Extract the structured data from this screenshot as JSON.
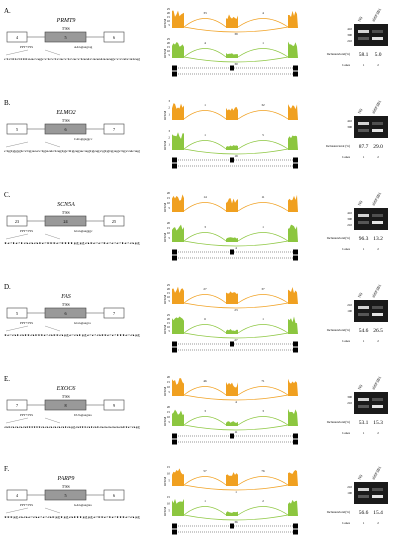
{
  "ss_label": "5'SS",
  "ppt_label": "PPT+3'SS",
  "rpkm_label": "RPKM",
  "inclusion_label": "Inclusion/total(%)",
  "inclusion_label_b": "Inclusion/total (%)",
  "lanes_label": "Lanes",
  "lane_numbers": [
    "1",
    "2"
  ],
  "lane_headers": [
    "NS",
    "shSF3B1"
  ],
  "colors": {
    "ns_track": "#f0a020",
    "sh_track": "#8cc63f",
    "exon_fill": "#999999",
    "gel_bg": "#1a1a1a"
  },
  "panels": [
    {
      "letter": "A.",
      "gene": "PRMT9",
      "exons": [
        "4",
        "5",
        "6"
      ],
      "show_ppt": true,
      "motif": "AAGgtaagcag",
      "seq": "ctctttctttttaacagcctcctcacctcacctaatcaaataaagcccatcatag",
      "ns_junctions": [
        "33",
        "4",
        "39"
      ],
      "sh_junctions": [
        "4",
        "1",
        "30"
      ],
      "ns_scale": [
        "25",
        "20",
        "15",
        "10",
        "5"
      ],
      "sh_scale": [
        "25",
        "20",
        "15",
        "10",
        "5"
      ],
      "markers": [
        "410",
        "300",
        "210"
      ],
      "inclusion": [
        "58.1",
        "5.0"
      ],
      "lanes_label_key": "A"
    },
    {
      "letter": "B.",
      "gene": "ELMO2",
      "exons": [
        "5",
        "6",
        "7"
      ],
      "show_ppt": false,
      "motif": "CAGgtgaggcc",
      "seq": "ctgtgggtcctgaacctgaatctagtgcttgagacagtgagcgtgtgagctgcatcag",
      "ns_junctions": [
        "1",
        "32"
      ],
      "sh_junctions": [
        "1",
        "5",
        "19"
      ],
      "ns_scale": [
        "3",
        "2",
        "1"
      ],
      "sh_scale": [
        "3",
        "2",
        "1"
      ],
      "markers": [
        "410",
        "300"
      ],
      "inclusion": [
        "87.7",
        "29.0"
      ],
      "lanes_label_key": "B"
    },
    {
      "letter": "C.",
      "gene": "SCN5A",
      "exons": [
        "23",
        "24",
        "25"
      ],
      "show_ppt": true,
      "motif": "GGGgtaagggc",
      "seq": "tctctaaatctttcttttggatcctccctcag",
      "ns_junctions": [
        "14",
        "11"
      ],
      "sh_junctions": [
        "3",
        "1",
        "4"
      ],
      "ns_scale": [
        "20",
        "15",
        "10",
        "5"
      ],
      "sh_scale": [
        "20",
        "15",
        "10",
        "5"
      ],
      "markers": [
        "410",
        "300",
        "210"
      ],
      "inclusion": [
        "96.3",
        "13.2"
      ],
      "lanes_label_key": "A"
    },
    {
      "letter": "D.",
      "gene": "FAS",
      "exons": [
        "5",
        "6",
        "7"
      ],
      "show_ppt": true,
      "motif": "GGGgtaagca",
      "seq": "tcatattatttcattagcatgccattcctttcag",
      "ns_junctions": [
        "27",
        "37",
        "23"
      ],
      "sh_junctions": [
        "6",
        "1",
        "27"
      ],
      "ns_scale": [
        "25",
        "20",
        "15",
        "10",
        "5"
      ],
      "sh_scale": [
        "25",
        "20",
        "15",
        "10",
        "5"
      ],
      "markers": [
        "210",
        "100"
      ],
      "inclusion": [
        "54.6",
        "26.5"
      ],
      "lanes_label_key": "A"
    },
    {
      "letter": "E.",
      "gene": "EXOC6",
      "exons": [
        "7",
        "8",
        "9"
      ],
      "show_ppt": true,
      "motif": "UUGgtaagtaa",
      "seq": "ataaaattttttaaaaaatagatttatataaaaaattcag",
      "ns_junctions": [
        "46",
        "71",
        "4"
      ],
      "sh_junctions": [
        "3",
        "3",
        "11"
      ],
      "ns_scale": [
        "20",
        "15",
        "10",
        "5"
      ],
      "sh_scale": [
        "20",
        "15",
        "10",
        "5"
      ],
      "markers": [
        "300",
        "210"
      ],
      "inclusion": [
        "53.1",
        "15.3"
      ],
      "lanes_label_key": "A"
    },
    {
      "letter": "F.",
      "gene": "PARP9",
      "exons": [
        "4",
        "5",
        "6"
      ],
      "show_ppt": true,
      "motif": "GAGgtaagtaa",
      "seq": "tttgaacaccatgtgatttggcttctctttcag",
      "ns_junctions": [
        "57",
        "76",
        "1"
      ],
      "sh_junctions": [
        "1",
        "2",
        "36"
      ],
      "ns_scale": [
        "15",
        "10",
        "5"
      ],
      "sh_scale": [
        "15",
        "10",
        "5"
      ],
      "markers": [
        "210",
        "100"
      ],
      "inclusion": [
        "56.6",
        "15.4"
      ],
      "lanes_label_key": "A"
    }
  ]
}
